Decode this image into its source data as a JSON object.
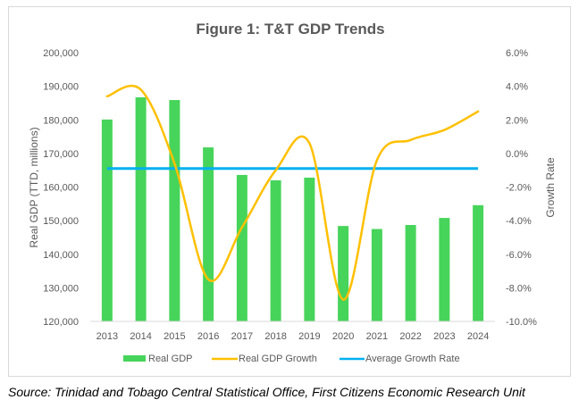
{
  "chart_data": {
    "type": "bar",
    "title": "Figure 1: T&T GDP Trends",
    "xlabel": "",
    "ylabel": "Real GDP (TTD, millions)",
    "y2label": "Growth Rate",
    "categories": [
      "2013",
      "2014",
      "2015",
      "2016",
      "2017",
      "2018",
      "2019",
      "2020",
      "2021",
      "2022",
      "2023",
      "2024"
    ],
    "ylim": [
      120000,
      200000
    ],
    "y_ticks": [
      120000,
      130000,
      140000,
      150000,
      160000,
      170000,
      180000,
      190000,
      200000
    ],
    "y_tick_labels": [
      "120,000",
      "130,000",
      "140,000",
      "150,000",
      "160,000",
      "170,000",
      "180,000",
      "190,000",
      "200,000"
    ],
    "y2lim": [
      -10.0,
      6.0
    ],
    "y2_ticks": [
      -10,
      -8,
      -6,
      -4,
      -2,
      0,
      2,
      4,
      6
    ],
    "y2_tick_labels": [
      "-10.0%",
      "-8.0%",
      "-6.0%",
      "-4.0%",
      "-2.0%",
      "0.0%",
      "2.0%",
      "4.0%",
      "6.0%"
    ],
    "grid": false,
    "legend_position": "bottom",
    "series": [
      {
        "name": "Real GDP",
        "type": "bar",
        "axis": "left",
        "color": "#47d45a",
        "values": [
          180100,
          186700,
          185900,
          171800,
          163600,
          162000,
          162800,
          148400,
          147500,
          148700,
          150800,
          154600
        ]
      },
      {
        "name": "Real GDP Growth",
        "type": "line",
        "smooth": true,
        "axis": "right",
        "color": "#ffc000",
        "values": [
          3.4,
          3.8,
          -0.6,
          -7.5,
          -4.4,
          -1.0,
          0.6,
          -8.7,
          -0.4,
          0.8,
          1.4,
          2.5
        ]
      },
      {
        "name": "Average Growth Rate",
        "type": "line",
        "axis": "right",
        "color": "#00b0f0",
        "values": [
          -0.9,
          -0.9,
          -0.9,
          -0.9,
          -0.9,
          -0.9,
          -0.9,
          -0.9,
          -0.9,
          -0.9,
          -0.9,
          -0.9
        ]
      }
    ]
  },
  "source": "Source: Trinidad and Tobago Central Statistical Office, First Citizens Economic Research Unit"
}
